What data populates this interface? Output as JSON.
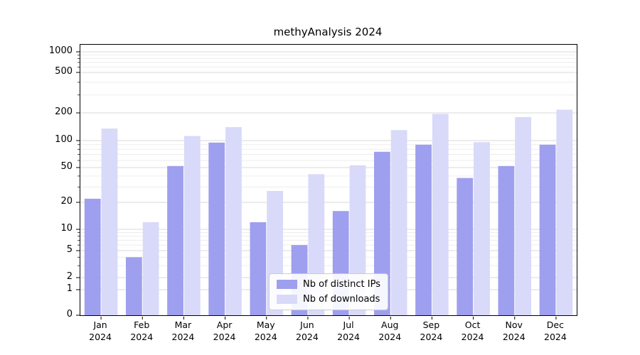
{
  "chart_data": {
    "type": "bar",
    "title": "methyAnalysis 2024",
    "xlabel": "",
    "ylabel": "",
    "scale": "symlog",
    "grid": true,
    "legend_position": "lower center",
    "ylim": [
      0,
      1000
    ],
    "yticks": [
      0,
      1,
      2,
      5,
      10,
      20,
      50,
      100,
      200,
      500,
      1000
    ],
    "categories": [
      "Jan 2024",
      "Feb 2024",
      "Mar 2024",
      "Apr 2024",
      "May 2024",
      "Jun 2024",
      "Jul 2024",
      "Aug 2024",
      "Sep 2024",
      "Oct 2024",
      "Nov 2024",
      "Dec 2024"
    ],
    "series": [
      {
        "name": "Nb of distinct IPs",
        "color": "#9f9fef",
        "values": [
          22,
          4,
          52,
          95,
          12,
          6,
          16,
          75,
          90,
          38,
          52,
          90
        ]
      },
      {
        "name": "Nb of downloads",
        "color": "#d9d9f9",
        "values": [
          135,
          12,
          112,
          140,
          27,
          42,
          53,
          130,
          195,
          96,
          180,
          215
        ]
      }
    ],
    "grid_major_color": "#d9d9d9",
    "grid_minor_color": "#ededed"
  }
}
